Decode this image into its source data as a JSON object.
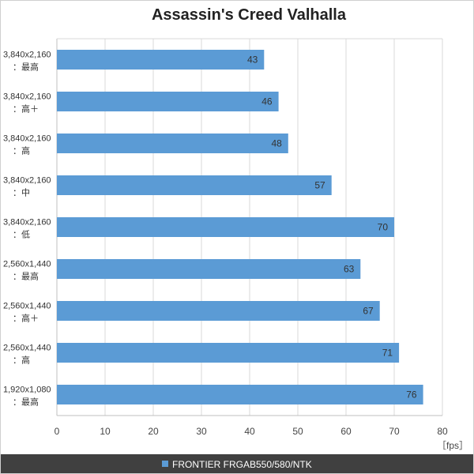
{
  "chart_data": {
    "type": "bar",
    "orientation": "horizontal",
    "title": "Assassin's Creed Valhalla",
    "unit_label": "［fps］",
    "xlim": [
      0,
      80
    ],
    "x_ticks": [
      0,
      10,
      20,
      30,
      40,
      50,
      60,
      70,
      80
    ],
    "grid": true,
    "legend_position": "bottom",
    "categories": [
      {
        "line1": "3,840x2,160",
        "line2": "：最高"
      },
      {
        "line1": "3,840x2,160",
        "line2": "：高＋"
      },
      {
        "line1": "3,840x2,160",
        "line2": "：高"
      },
      {
        "line1": "3,840x2,160",
        "line2": "：中"
      },
      {
        "line1": "3,840x2,160",
        "line2": "：低"
      },
      {
        "line1": "2,560x1,440",
        "line2": "：最高"
      },
      {
        "line1": "2,560x1,440",
        "line2": "：高＋"
      },
      {
        "line1": "2,560x1,440",
        "line2": "：高"
      },
      {
        "line1": "1,920x1,080",
        "line2": "：最高"
      }
    ],
    "series": [
      {
        "name": "FRONTIER FRGAB550/580/NTK",
        "color": "#5b9bd5",
        "values": [
          43,
          46,
          48,
          57,
          70,
          63,
          67,
          71,
          76
        ]
      }
    ]
  },
  "colors": {
    "bar": "#5b9bd5",
    "grid": "#d9d9d9",
    "legend_bg": "#404040"
  }
}
